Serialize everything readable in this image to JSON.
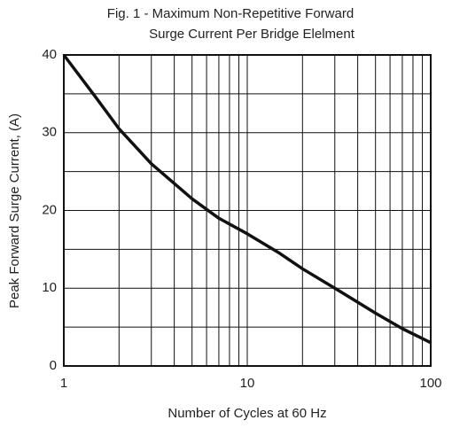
{
  "chart_data": {
    "type": "line",
    "title": [
      "Fig. 1 - Maximum Non-Repetitive Forward",
      "Surge Current Per Bridge Elelment"
    ],
    "x_label": "Number of Cycles at 60 Hz",
    "y_label": "Peak Forward Surge Current, (A)",
    "x": [
      1,
      1.5,
      2,
      3,
      5,
      7,
      10,
      15,
      20,
      30,
      50,
      70,
      100
    ],
    "series": [
      {
        "color": "#111111",
        "values": [
          40,
          34.5,
          30.5,
          26,
          21.5,
          19,
          17,
          14.5,
          12.5,
          10,
          6.8,
          4.8,
          3
        ]
      }
    ],
    "xlim": [
      1,
      100
    ],
    "xticks": [
      1,
      10,
      100
    ],
    "x_log": true,
    "minor_xticks": [
      2,
      3,
      4,
      5,
      6,
      7,
      8,
      9,
      20,
      30,
      40,
      50,
      60,
      70,
      80,
      90
    ],
    "ylim": [
      0,
      40
    ],
    "yticks": [
      0,
      10,
      20,
      30,
      40
    ],
    "minor_yticks": [
      5,
      15,
      25,
      35
    ],
    "grid": true
  }
}
